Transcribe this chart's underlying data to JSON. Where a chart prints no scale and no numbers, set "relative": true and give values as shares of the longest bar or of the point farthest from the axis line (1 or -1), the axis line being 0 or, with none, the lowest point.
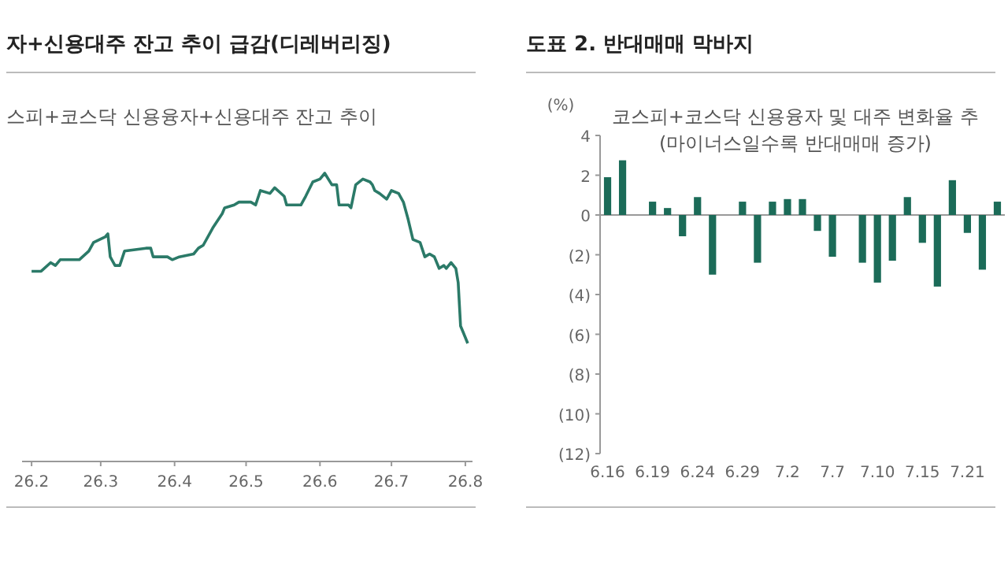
{
  "chart_data": [
    {
      "type": "line",
      "title": "자+신용대주 잔고 추이 급감(디레버리징)",
      "subtitle": "스피+코스닥 신용융자+신용대주 잔고 추이",
      "relative": true,
      "color": "#2b7a68",
      "line_style": "solid",
      "x": [
        "--02-01",
        "--02-05",
        "--02-09",
        "--02-11",
        "--02-13",
        "--02-21",
        "--02-25",
        "--02-27",
        "--03-03",
        "--03-04",
        "--03-05",
        "--03-07",
        "--03-09",
        "--03-11",
        "--03-20",
        "--03-22",
        "--03-23",
        "--03-29",
        "--03-31",
        "--04-03",
        "--04-09",
        "--04-11",
        "--04-13",
        "--04-17",
        "--04-21",
        "--04-22",
        "--04-26",
        "--04-28",
        "--05-03",
        "--05-05",
        "--05-07",
        "--05-11",
        "--05-13",
        "--05-17",
        "--05-18",
        "--05-24",
        "--05-26",
        "--05-29",
        "--06-01",
        "--06-03",
        "--06-06",
        "--06-08",
        "--06-09",
        "--06-13",
        "--06-14",
        "--06-16",
        "--06-19",
        "--06-22",
        "--06-23",
        "--06-24",
        "--06-26",
        "--06-29",
        "--07-01",
        "--07-04",
        "--07-06",
        "--07-08",
        "--07-10",
        "--07-13",
        "--07-15",
        "--07-17",
        "--07-19",
        "--07-21",
        "--07-23",
        "--07-24",
        "--07-26",
        "--07-28",
        "--07-29",
        "--07-30",
        "--07-31",
        "--08-02"
      ],
      "values": [
        0.66,
        0.66,
        0.69,
        0.68,
        0.7,
        0.7,
        0.73,
        0.76,
        0.78,
        0.79,
        0.71,
        0.68,
        0.68,
        0.73,
        0.74,
        0.74,
        0.71,
        0.71,
        0.7,
        0.71,
        0.72,
        0.74,
        0.75,
        0.81,
        0.86,
        0.88,
        0.89,
        0.9,
        0.9,
        0.89,
        0.94,
        0.93,
        0.95,
        0.92,
        0.89,
        0.89,
        0.92,
        0.97,
        0.98,
        1.0,
        0.96,
        0.96,
        0.89,
        0.89,
        0.88,
        0.96,
        0.98,
        0.97,
        0.96,
        0.94,
        0.93,
        0.91,
        0.94,
        0.93,
        0.9,
        0.84,
        0.77,
        0.76,
        0.71,
        0.72,
        0.71,
        0.67,
        0.68,
        0.67,
        0.69,
        0.67,
        0.62,
        0.47,
        0.45,
        0.41
      ],
      "xlim": [
        "--01-28",
        "--08-04"
      ],
      "xticks": [
        {
          "value": "--02-01",
          "label": "26.2"
        },
        {
          "value": "--03-01",
          "label": "26.3"
        },
        {
          "value": "--04-01",
          "label": "26.4"
        },
        {
          "value": "--05-01",
          "label": "26.5"
        },
        {
          "value": "--06-01",
          "label": "26.6"
        },
        {
          "value": "--07-01",
          "label": "26.7"
        },
        {
          "value": "--08-01",
          "label": "26.8"
        }
      ]
    },
    {
      "type": "bar",
      "title": "도표 2. 반대매매 막바지",
      "subtitle": "코스피+코스닥 신용융자 및 대주 변화율 추\n(마이너스일수록 반대매매 증가)",
      "ylabel": "(%)",
      "color": "#1b6b58",
      "categories": [
        "6.16",
        null,
        null,
        "6.19",
        null,
        null,
        "6.24",
        null,
        null,
        "6.29",
        null,
        null,
        "7.2",
        null,
        null,
        "7.7",
        null,
        null,
        "7.10",
        null,
        null,
        "7.15",
        null,
        null,
        "7.21",
        null,
        null
      ],
      "values": [
        1.9,
        2.75,
        0,
        0.67,
        0.35,
        -1.07,
        0.9,
        -3.0,
        0,
        0.67,
        -2.4,
        0.67,
        0.8,
        0.8,
        -0.8,
        -2.1,
        0,
        -2.4,
        -3.4,
        -2.3,
        0.9,
        -1.4,
        -3.6,
        1.75,
        -0.9,
        -2.75,
        0.67
      ],
      "ylim": [
        -12,
        4
      ],
      "yticks": [
        {
          "value": -12,
          "label": "(12)"
        },
        {
          "value": -10,
          "label": "(10)"
        },
        {
          "value": -8,
          "label": "(8)"
        },
        {
          "value": -6,
          "label": "(6)"
        },
        {
          "value": -4,
          "label": "(4)"
        },
        {
          "value": -2,
          "label": "(2)"
        },
        0,
        2,
        4
      ]
    }
  ]
}
